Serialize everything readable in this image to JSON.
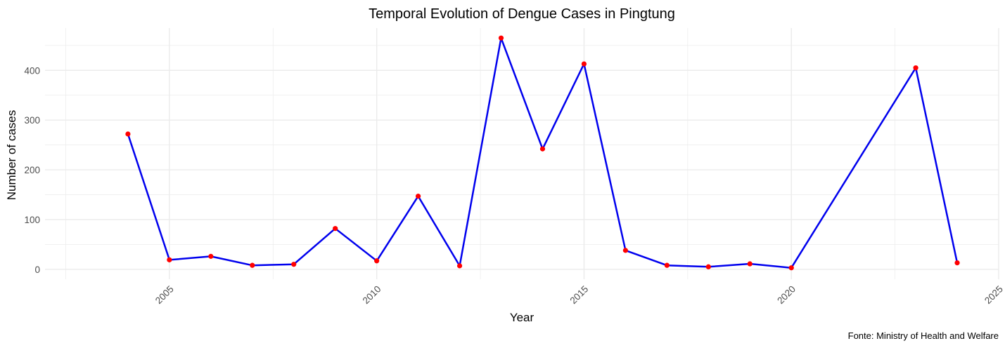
{
  "chart_data": {
    "type": "line",
    "title": "Temporal Evolution of Dengue Cases in Pingtung",
    "xlabel": "Year",
    "ylabel": "Number of cases",
    "caption": "Fonte: Ministry of Health and Welfare",
    "x": [
      2004,
      2005,
      2006,
      2007,
      2008,
      2009,
      2010,
      2011,
      2012,
      2013,
      2014,
      2015,
      2016,
      2017,
      2018,
      2019,
      2020,
      2023,
      2024
    ],
    "series": [
      {
        "values": [
          272,
          19,
          26,
          8,
          10,
          82,
          17,
          147,
          7,
          465,
          242,
          413,
          38,
          8,
          5,
          11,
          3,
          405,
          13
        ]
      }
    ],
    "xticks": [
      "2005",
      "2010",
      "2015",
      "2020",
      "2025"
    ],
    "yticks": [
      "0",
      "100",
      "200",
      "300",
      "400"
    ],
    "xlim": [
      2002,
      2025
    ],
    "ylim": [
      -20,
      485
    ],
    "grid": true,
    "colors": {
      "line": "#0000ee",
      "points": "#ff0000",
      "grid": "#ebebeb"
    }
  }
}
